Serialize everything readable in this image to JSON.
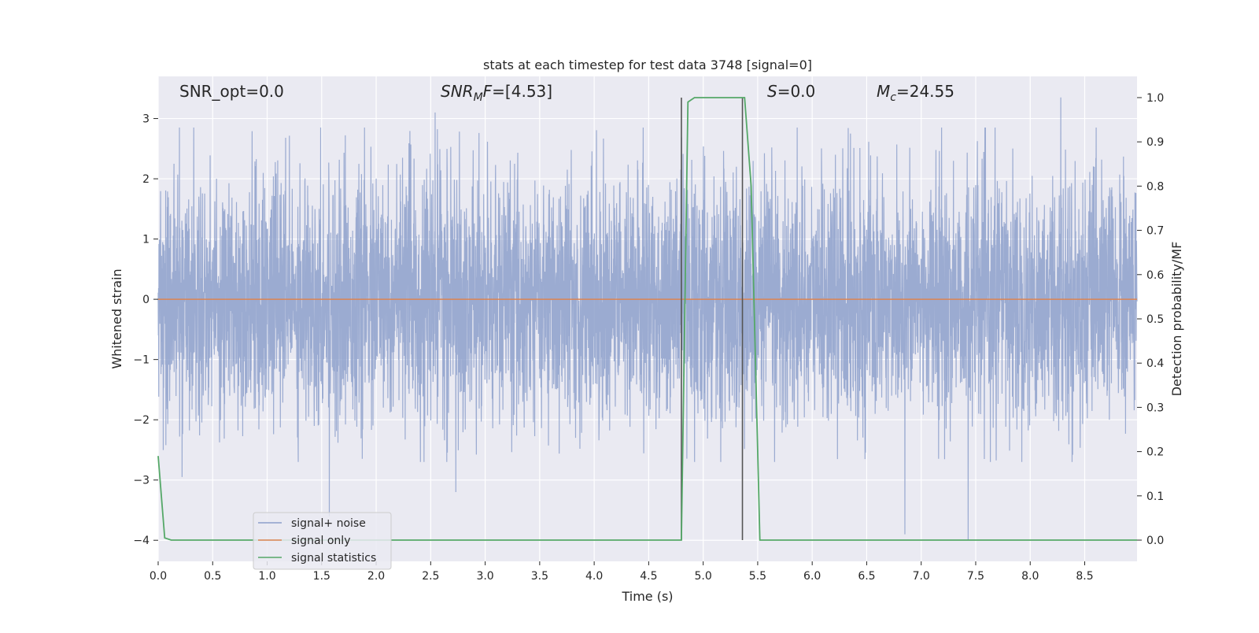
{
  "chart_data": {
    "type": "line",
    "title": "stats at each timestep for test data 3748 [signal=0]",
    "xlabel": "Time (s)",
    "ylabel_left": "Whitened strain",
    "ylabel_right": "Detection probability/MF",
    "xlim": [
      0.0,
      8.98
    ],
    "ylim_left": [
      -4.35,
      3.7
    ],
    "ylim_right": [
      -0.048,
      1.048
    ],
    "xticks": [
      0.0,
      0.5,
      1.0,
      1.5,
      2.0,
      2.5,
      3.0,
      3.5,
      4.0,
      4.5,
      5.0,
      5.5,
      6.0,
      6.5,
      7.0,
      7.5,
      8.0,
      8.5
    ],
    "xtick_labels": [
      "0.0",
      "0.5",
      "1.0",
      "1.5",
      "2.0",
      "2.5",
      "3.0",
      "3.5",
      "4.0",
      "4.5",
      "5.0",
      "5.5",
      "6.0",
      "6.5",
      "7.0",
      "7.5",
      "8.0",
      "8.5"
    ],
    "yticks_left": [
      -4,
      -3,
      -2,
      -1,
      0,
      1,
      2,
      3
    ],
    "ytick_labels_left": [
      "−4",
      "−3",
      "−2",
      "−1",
      "0",
      "1",
      "2",
      "3"
    ],
    "yticks_right": [
      0.0,
      0.1,
      0.2,
      0.3,
      0.4,
      0.5,
      0.6,
      0.7,
      0.8,
      0.9,
      1.0
    ],
    "ytick_labels_right": [
      "0.0",
      "0.1",
      "0.2",
      "0.3",
      "0.4",
      "0.5",
      "0.6",
      "0.7",
      "0.8",
      "0.9",
      "1.0"
    ],
    "grid": true,
    "legend_position": "lower-left",
    "series": [
      {
        "name": "signal+ noise",
        "axis": "left",
        "color": "#8da0cb",
        "description_values": "whitened noise, dense random samples over 0.0–8.98 s",
        "envelope_typical": [
          -1.8,
          2.0
        ],
        "notable_extremes": [
          {
            "x": 0.22,
            "y": -2.95
          },
          {
            "x": 1.57,
            "y": -3.6
          },
          {
            "x": 2.54,
            "y": 3.1
          },
          {
            "x": 2.73,
            "y": -3.2
          },
          {
            "x": 6.85,
            "y": -3.9
          },
          {
            "x": 7.43,
            "y": -4.0
          },
          {
            "x": 8.28,
            "y": 3.35
          }
        ]
      },
      {
        "name": "signal only",
        "axis": "left",
        "color": "#dd8452",
        "x": [
          0.0,
          8.98
        ],
        "y": [
          0.0,
          0.0
        ]
      },
      {
        "name": "signal statistics",
        "axis": "right",
        "color": "#55a868",
        "x": [
          0.0,
          0.06,
          0.12,
          4.8,
          4.86,
          4.92,
          5.0,
          5.1,
          5.2,
          5.3,
          5.38,
          5.44,
          5.52,
          8.98
        ],
        "y": [
          0.19,
          0.005,
          0.0,
          0.0,
          0.99,
          1.0,
          1.0,
          1.0,
          1.0,
          1.0,
          1.0,
          0.8,
          0.0,
          0.0
        ]
      }
    ],
    "vertical_lines": [
      {
        "x": 4.8,
        "color": "#555555",
        "y_right_range": [
          0.0,
          1.0
        ]
      },
      {
        "x": 5.36,
        "color": "#555555",
        "y_right_range": [
          0.0,
          1.0
        ]
      }
    ],
    "annotations": [
      {
        "text": "SNR_opt=0.0"
      },
      {
        "text_main": "SNR",
        "text_sub": "M",
        "text_tail": "F=[4.53]"
      },
      {
        "text_main": "S",
        "text_tail": "=0.0"
      },
      {
        "text_main": "M",
        "text_sub": "c",
        "text_tail": "=24.55"
      }
    ],
    "colors": {
      "plot_bg": "#eaeaf2",
      "grid": "#ffffff",
      "noise": "#8da0cb",
      "signal": "#dd8452",
      "stats": "#55a868"
    }
  }
}
